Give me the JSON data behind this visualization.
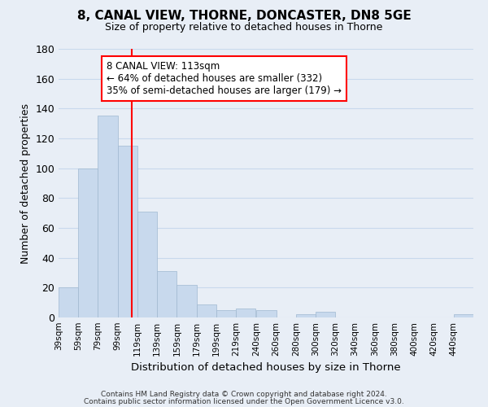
{
  "title": "8, CANAL VIEW, THORNE, DONCASTER, DN8 5GE",
  "subtitle": "Size of property relative to detached houses in Thorne",
  "xlabel": "Distribution of detached houses by size in Thorne",
  "ylabel": "Number of detached properties",
  "footnote1": "Contains HM Land Registry data © Crown copyright and database right 2024.",
  "footnote2": "Contains public sector information licensed under the Open Government Licence v3.0.",
  "bar_edges": [
    39,
    59,
    79,
    99,
    119,
    139,
    159,
    179,
    199,
    219,
    240,
    260,
    280,
    300,
    320,
    340,
    360,
    380,
    400,
    420,
    440
  ],
  "bar_heights": [
    20,
    100,
    135,
    115,
    71,
    31,
    22,
    9,
    5,
    6,
    5,
    0,
    2,
    4,
    0,
    0,
    0,
    0,
    0,
    0,
    2
  ],
  "bar_color": "#c8d9ed",
  "bar_edge_color": "#a0b8d0",
  "property_line_x": 113,
  "property_line_color": "red",
  "ylim": [
    0,
    180
  ],
  "yticks": [
    0,
    20,
    40,
    60,
    80,
    100,
    120,
    140,
    160,
    180
  ],
  "annotation_title": "8 CANAL VIEW: 113sqm",
  "annotation_line1": "← 64% of detached houses are smaller (332)",
  "annotation_line2": "35% of semi-detached houses are larger (179) →",
  "grid_color": "#c8d9ed",
  "background_color": "#e8eef6"
}
